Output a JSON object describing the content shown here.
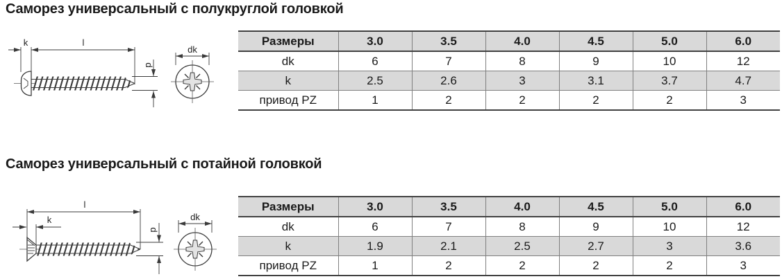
{
  "colors": {
    "row_shaded": "#d9d9d9",
    "border_dark": "#404040",
    "border_light": "#7f7f7f",
    "drawing_line": "#3a3a3a",
    "text": "#1a1a1a",
    "background": "#ffffff"
  },
  "sections": [
    {
      "title": "Саморез универсальный с полукруглой головкой",
      "drawing": {
        "head_type": "pan-head-screw",
        "labels": {
          "k": "k",
          "l": "l",
          "d": "d",
          "dk": "dk"
        }
      },
      "table": {
        "header": [
          "Размеры",
          "3.0",
          "3.5",
          "4.0",
          "4.5",
          "5.0",
          "6.0"
        ],
        "rows": [
          {
            "label": "dk",
            "values": [
              "6",
              "7",
              "8",
              "9",
              "10",
              "12"
            ]
          },
          {
            "label": "k",
            "values": [
              "2.5",
              "2.6",
              "3",
              "3.1",
              "3.7",
              "4.7"
            ]
          },
          {
            "label": "привод PZ",
            "values": [
              "1",
              "2",
              "2",
              "2",
              "2",
              "3"
            ]
          }
        ]
      }
    },
    {
      "title": "Саморез универсальный с потайной головкой",
      "drawing": {
        "head_type": "countersunk-head-screw",
        "labels": {
          "k": "k",
          "l": "l",
          "d": "d",
          "dk": "dk"
        }
      },
      "table": {
        "header": [
          "Размеры",
          "3.0",
          "3.5",
          "4.0",
          "4.5",
          "5.0",
          "6.0"
        ],
        "rows": [
          {
            "label": "dk",
            "values": [
              "6",
              "7",
              "8",
              "9",
              "10",
              "12"
            ]
          },
          {
            "label": "k",
            "values": [
              "1.9",
              "2.1",
              "2.5",
              "2.7",
              "3",
              "3.6"
            ]
          },
          {
            "label": "привод PZ",
            "values": [
              "1",
              "2",
              "2",
              "2",
              "2",
              "3"
            ]
          }
        ]
      }
    }
  ]
}
